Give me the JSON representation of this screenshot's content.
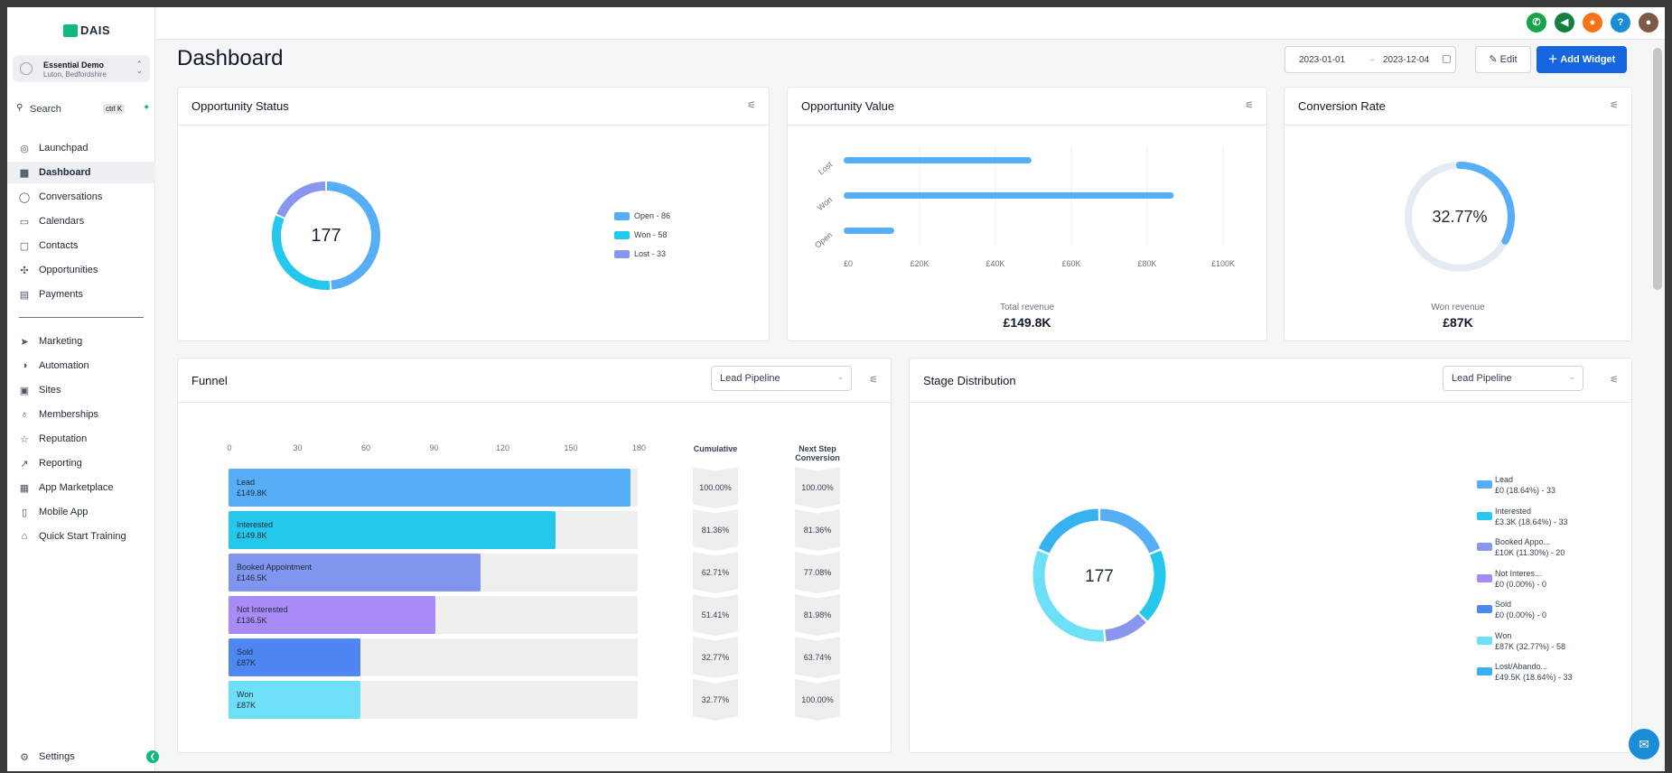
{
  "sidebar": {
    "logo": "DAIS",
    "account": {
      "name": "Essential Demo",
      "location": "Luton, Bedfordshire"
    },
    "search": {
      "label": "Search",
      "shortcut": "ctrl K"
    },
    "items": [
      {
        "label": "Launchpad",
        "icon": "rocket-icon"
      },
      {
        "label": "Dashboard",
        "icon": "dashboard-icon"
      },
      {
        "label": "Conversations",
        "icon": "chat-icon"
      },
      {
        "label": "Calendars",
        "icon": "calendar-icon"
      },
      {
        "label": "Contacts",
        "icon": "contacts-icon"
      },
      {
        "label": "Opportunities",
        "icon": "opportunities-icon"
      },
      {
        "label": "Payments",
        "icon": "payments-icon"
      }
    ],
    "items2": [
      {
        "label": "Marketing",
        "icon": "send-icon"
      },
      {
        "label": "Automation",
        "icon": "automation-icon"
      },
      {
        "label": "Sites",
        "icon": "sites-icon"
      },
      {
        "label": "Memberships",
        "icon": "membership-icon"
      },
      {
        "label": "Reputation",
        "icon": "star-icon"
      },
      {
        "label": "Reporting",
        "icon": "trend-icon"
      },
      {
        "label": "App Marketplace",
        "icon": "apps-icon"
      },
      {
        "label": "Mobile App",
        "icon": "mobile-icon"
      },
      {
        "label": "Quick Start Training",
        "icon": "training-icon"
      }
    ],
    "settings": "Settings"
  },
  "header": {
    "title": "Dashboard",
    "date_from": "2023-01-01",
    "date_to": "2023-12-04",
    "edit": "Edit",
    "add_widget": "Add Widget"
  },
  "opportunity_status": {
    "title": "Opportunity Status",
    "total": "177",
    "legend": [
      "Open - 86",
      "Won - 58",
      "Lost - 33"
    ],
    "colors": [
      "#55aef6",
      "#23c8ec",
      "#8a96ee"
    ]
  },
  "opportunity_value": {
    "title": "Opportunity Value",
    "caption": "Total revenue",
    "total": "£149.8K"
  },
  "conversion_rate": {
    "title": "Conversion Rate",
    "value": "32.77%",
    "caption": "Won revenue",
    "amount": "£87K"
  },
  "funnel": {
    "title": "Funnel",
    "pipeline": "Lead Pipeline",
    "col_cumulative": "Cumulative",
    "col_next": "Next Step Conversion"
  },
  "stage_distribution": {
    "title": "Stage Distribution",
    "pipeline": "Lead Pipeline",
    "total": "177",
    "legend": [
      {
        "name": "Lead",
        "detail": "£0 (18.64%) - 33",
        "color": "#55aef6"
      },
      {
        "name": "Interested",
        "detail": "£3.3K (18.64%) - 33",
        "color": "#23c8ec"
      },
      {
        "name": "Booked Appo...",
        "detail": "£10K (11.30%) - 20",
        "color": "#8a96ee"
      },
      {
        "name": "Not Interes...",
        "detail": "£0 (0.00%) - 0",
        "color": "#a78bf5"
      },
      {
        "name": "Sold",
        "detail": "£0 (0.00%) - 0",
        "color": "#4f87f2"
      },
      {
        "name": "Won",
        "detail": "£87K (32.77%) - 58",
        "color": "#6de0f7"
      },
      {
        "name": "Lost/Abando...",
        "detail": "£49.5K (18.64%) - 33",
        "color": "#36b2f0"
      }
    ]
  },
  "chart_data": [
    {
      "type": "pie",
      "categories": [
        "Open",
        "Won",
        "Lost"
      ],
      "values": [
        86,
        58,
        33
      ],
      "title": "Opportunity Status"
    },
    {
      "type": "bar",
      "orientation": "horizontal",
      "title": "Opportunity Value",
      "categories": [
        "Lost",
        "Won",
        "Open"
      ],
      "values": [
        49500,
        87000,
        13300
      ],
      "xlim": [
        0,
        100000
      ],
      "xticks": [
        "£0",
        "£20K",
        "£40K",
        "£60K",
        "£80K",
        "£100K"
      ],
      "grid": true
    },
    {
      "type": "bar",
      "orientation": "horizontal",
      "title": "Funnel",
      "xlim": [
        0,
        180
      ],
      "xticks": [
        "0",
        "30",
        "60",
        "90",
        "120",
        "150",
        "180"
      ],
      "categories": [
        "Lead",
        "Interested",
        "Booked Appointment",
        "Not Interested",
        "Sold",
        "Won"
      ],
      "values": [
        177,
        144,
        111,
        91,
        58,
        58
      ],
      "amounts": [
        "£149.8K",
        "£149.8K",
        "£146.5K",
        "£136.5K",
        "£87K",
        "£87K"
      ],
      "cumulative": [
        "100.00%",
        "81.36%",
        "62.71%",
        "51.41%",
        "32.77%",
        "32.77%"
      ],
      "next_step": [
        "100.00%",
        "81.36%",
        "77.08%",
        "81.98%",
        "63.74%",
        "100.00%"
      ],
      "colors": [
        "#55aef6",
        "#23c8ec",
        "#7f95ee",
        "#a88bf6",
        "#4f87f2",
        "#6de0f7"
      ]
    },
    {
      "type": "pie",
      "title": "Stage Distribution",
      "categories": [
        "Lead",
        "Interested",
        "Booked Appo...",
        "Won",
        "Lost/Abando..."
      ],
      "values": [
        33,
        33,
        20,
        58,
        33
      ],
      "colors": [
        "#55aef6",
        "#23c8ec",
        "#8a96ee",
        "#6de0f7",
        "#36b2f0"
      ]
    }
  ]
}
